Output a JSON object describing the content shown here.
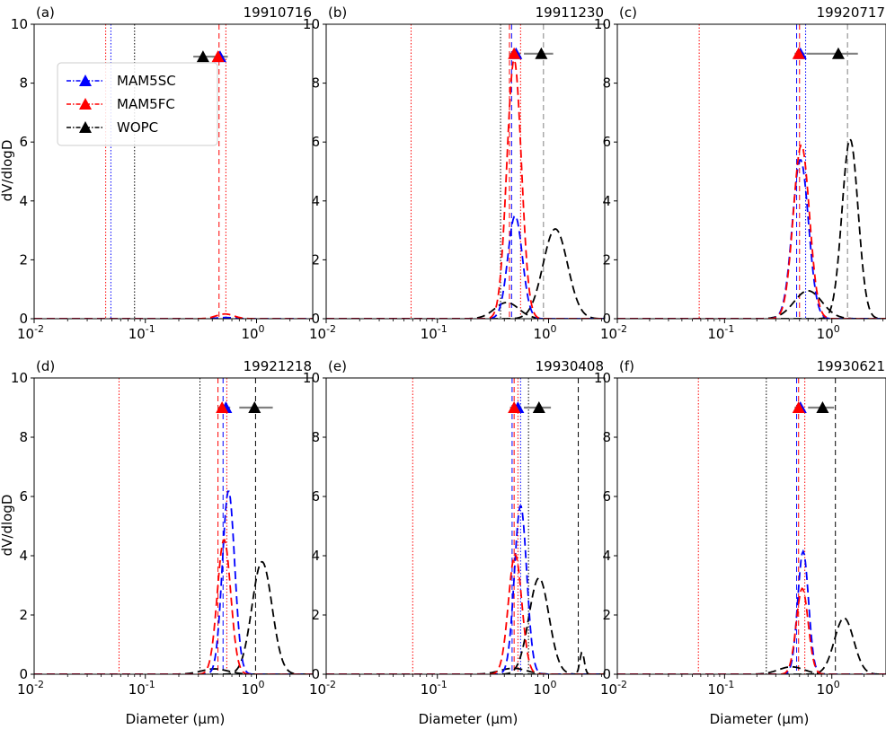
{
  "figure": {
    "ylabel": "dV/dlogD",
    "xlabel": "Diameter (μm)",
    "colors": {
      "MAM5SC": "#0000ff",
      "MAM5FC": "#ff0000",
      "WOPC": "#000000",
      "error_bar": "#808080"
    },
    "legend": [
      {
        "name": "MAM5SC",
        "color": "#0000ff"
      },
      {
        "name": "MAM5FC",
        "color": "#ff0000"
      },
      {
        "name": "WOPC",
        "color": "#000000"
      }
    ]
  },
  "chart_data": [
    {
      "type": "line",
      "panel": "(a)",
      "date": "19910716",
      "xscale": "log",
      "xlim": [
        0.01,
        3.2
      ],
      "ylim": [
        0,
        10
      ],
      "yticks": [
        0,
        2,
        4,
        6,
        8,
        10
      ],
      "xticks": [
        "10^-2",
        "10^-1",
        "10^0"
      ],
      "legend_placement": "upper-left",
      "series": [
        {
          "name": "MAM5SC",
          "peak_d": 0.53,
          "sigma": 0.08,
          "amplitude": 0.04
        },
        {
          "name": "MAM5FC",
          "peak_d": 0.52,
          "sigma": 0.08,
          "amplitude": 0.16
        }
      ],
      "vlines": [
        {
          "x": 0.044,
          "color": "#ff0000",
          "style": "dotted"
        },
        {
          "x": 0.049,
          "color": "#0000ff",
          "style": "dotted"
        },
        {
          "x": 0.08,
          "color": "#000000",
          "style": "dotted"
        },
        {
          "x": 0.46,
          "color": "#ff0000",
          "style": "dashed"
        },
        {
          "x": 0.53,
          "color": "#ff0000",
          "style": "dotted"
        }
      ],
      "markers": [
        {
          "series": "WOPC",
          "x": 0.33,
          "y": 8.9,
          "err": [
            0.27,
            0.45
          ]
        },
        {
          "series": "MAM5SC",
          "x": 0.47,
          "y": 8.9,
          "err": [
            0.4,
            0.55
          ]
        },
        {
          "series": "MAM5FC",
          "x": 0.45,
          "y": 8.9,
          "err": [
            0.4,
            0.55
          ]
        }
      ]
    },
    {
      "type": "line",
      "panel": "(b)",
      "date": "19911230",
      "xscale": "log",
      "xlim": [
        0.01,
        3.2
      ],
      "ylim": [
        0,
        10
      ],
      "yticks": [
        0,
        2,
        4,
        6,
        8,
        10
      ],
      "xticks": [
        "10^-2",
        "10^-1",
        "10^0"
      ],
      "series": [
        {
          "name": "WOPC",
          "peak_d": 0.42,
          "sigma": 0.11,
          "amplitude": 0.55
        },
        {
          "name": "WOPC",
          "peak_d": 1.15,
          "sigma": 0.11,
          "amplitude": 3.05
        },
        {
          "name": "MAM5SC",
          "peak_d": 0.5,
          "sigma": 0.065,
          "amplitude": 3.5
        },
        {
          "name": "MAM5FC",
          "peak_d": 0.49,
          "sigma": 0.065,
          "amplitude": 8.8
        }
      ],
      "vlines": [
        {
          "x": 0.058,
          "color": "#ff0000",
          "style": "dotted"
        },
        {
          "x": 0.37,
          "color": "#000000",
          "style": "dotted"
        },
        {
          "x": 0.445,
          "color": "#ff0000",
          "style": "dashed"
        },
        {
          "x": 0.465,
          "color": "#0000ff",
          "style": "dashed"
        },
        {
          "x": 0.56,
          "color": "#ff0000",
          "style": "dotted"
        },
        {
          "x": 0.9,
          "color": "#808080",
          "style": "dashed"
        }
      ],
      "markers": [
        {
          "series": "MAM5SC",
          "x": 0.51,
          "y": 9.0,
          "err": [
            0.47,
            0.56
          ]
        },
        {
          "series": "MAM5FC",
          "x": 0.49,
          "y": 9.0,
          "err": [
            0.45,
            0.55
          ]
        },
        {
          "series": "WOPC",
          "x": 0.86,
          "y": 9.0,
          "err": [
            0.6,
            1.1
          ]
        }
      ]
    },
    {
      "type": "line",
      "panel": "(c)",
      "date": "19920717",
      "xscale": "log",
      "xlim": [
        0.01,
        3.2
      ],
      "ylim": [
        0,
        10
      ],
      "yticks": [
        0,
        2,
        4,
        6,
        8,
        10
      ],
      "xticks": [
        "10^-2",
        "10^-1",
        "10^0"
      ],
      "series": [
        {
          "name": "WOPC",
          "peak_d": 0.6,
          "sigma": 0.13,
          "amplitude": 0.95
        },
        {
          "name": "WOPC",
          "peak_d": 1.48,
          "sigma": 0.075,
          "amplitude": 6.1
        },
        {
          "name": "MAM5SC",
          "peak_d": 0.51,
          "sigma": 0.075,
          "amplitude": 5.4
        },
        {
          "name": "MAM5FC",
          "peak_d": 0.52,
          "sigma": 0.075,
          "amplitude": 5.9
        }
      ],
      "vlines": [
        {
          "x": 0.058,
          "color": "#ff0000",
          "style": "dotted"
        },
        {
          "x": 0.47,
          "color": "#0000ff",
          "style": "dashed"
        },
        {
          "x": 0.5,
          "color": "#ff0000",
          "style": "dashed"
        },
        {
          "x": 0.57,
          "color": "#0000ff",
          "style": "dotted"
        },
        {
          "x": 1.4,
          "color": "#808080",
          "style": "dashed"
        }
      ],
      "markers": [
        {
          "series": "MAM5SC",
          "x": 0.51,
          "y": 9.0,
          "err": [
            0.47,
            0.56
          ]
        },
        {
          "series": "MAM5FC",
          "x": 0.49,
          "y": 9.0,
          "err": [
            0.45,
            0.55
          ]
        },
        {
          "series": "WOPC",
          "x": 1.15,
          "y": 9.0,
          "err": [
            0.58,
            1.75
          ]
        }
      ]
    },
    {
      "type": "line",
      "panel": "(d)",
      "date": "19921218",
      "xscale": "log",
      "xlim": [
        0.01,
        3.2
      ],
      "ylim": [
        0,
        10
      ],
      "yticks": [
        0,
        2,
        4,
        6,
        8,
        10
      ],
      "xticks": [
        "10^-2",
        "10^-1",
        "10^0"
      ],
      "series": [
        {
          "name": "WOPC",
          "peak_d": 0.42,
          "sigma": 0.12,
          "amplitude": 0.18
        },
        {
          "name": "WOPC",
          "peak_d": 1.12,
          "sigma": 0.09,
          "amplitude": 3.8
        },
        {
          "name": "MAM5SC",
          "peak_d": 0.56,
          "sigma": 0.055,
          "amplitude": 6.2
        },
        {
          "name": "MAM5FC",
          "peak_d": 0.51,
          "sigma": 0.06,
          "amplitude": 4.55
        }
      ],
      "vlines": [
        {
          "x": 0.058,
          "color": "#ff0000",
          "style": "dotted"
        },
        {
          "x": 0.31,
          "color": "#000000",
          "style": "dotted"
        },
        {
          "x": 0.45,
          "color": "#ff0000",
          "style": "dashed"
        },
        {
          "x": 0.5,
          "color": "#0000ff",
          "style": "dashed"
        },
        {
          "x": 0.54,
          "color": "#ff0000",
          "style": "dotted"
        },
        {
          "x": 0.98,
          "color": "#000000",
          "style": "dashed"
        }
      ],
      "markers": [
        {
          "series": "MAM5SC",
          "x": 0.53,
          "y": 9.0,
          "err": [
            0.49,
            0.58
          ]
        },
        {
          "series": "MAM5FC",
          "x": 0.49,
          "y": 9.0,
          "err": [
            0.45,
            0.53
          ]
        },
        {
          "series": "WOPC",
          "x": 0.96,
          "y": 9.0,
          "err": [
            0.7,
            1.4
          ]
        }
      ]
    },
    {
      "type": "line",
      "panel": "(e)",
      "date": "19930408",
      "xscale": "log",
      "xlim": [
        0.01,
        3.2
      ],
      "ylim": [
        0,
        10
      ],
      "yticks": [
        0,
        2,
        4,
        6,
        8,
        10
      ],
      "xticks": [
        "10^-2",
        "10^-1",
        "10^0"
      ],
      "series": [
        {
          "name": "WOPC",
          "peak_d": 0.48,
          "sigma": 0.12,
          "amplitude": 0.2
        },
        {
          "name": "WOPC",
          "peak_d": 0.82,
          "sigma": 0.09,
          "amplitude": 3.25
        },
        {
          "name": "WOPC",
          "peak_d": 2.0,
          "sigma": 0.02,
          "amplitude": 0.75
        },
        {
          "name": "MAM5SC",
          "peak_d": 0.56,
          "sigma": 0.055,
          "amplitude": 5.7
        },
        {
          "name": "MAM5FC",
          "peak_d": 0.5,
          "sigma": 0.06,
          "amplitude": 4.05
        }
      ],
      "vlines": [
        {
          "x": 0.06,
          "color": "#ff0000",
          "style": "dotted"
        },
        {
          "x": 0.47,
          "color": "#0000ff",
          "style": "dashed"
        },
        {
          "x": 0.49,
          "color": "#ff0000",
          "style": "dashed"
        },
        {
          "x": 0.53,
          "color": "#ff0000",
          "style": "dotted"
        },
        {
          "x": 0.56,
          "color": "#0000ff",
          "style": "dotted"
        },
        {
          "x": 0.66,
          "color": "#000000",
          "style": "dotted"
        },
        {
          "x": 1.85,
          "color": "#000000",
          "style": "dashed"
        }
      ],
      "markers": [
        {
          "series": "MAM5SC",
          "x": 0.53,
          "y": 9.0,
          "err": [
            0.49,
            0.57
          ]
        },
        {
          "series": "MAM5FC",
          "x": 0.49,
          "y": 9.0,
          "err": [
            0.45,
            0.53
          ]
        },
        {
          "series": "WOPC",
          "x": 0.82,
          "y": 9.0,
          "err": [
            0.6,
            1.05
          ]
        }
      ]
    },
    {
      "type": "line",
      "panel": "(f)",
      "date": "19930621",
      "xscale": "log",
      "xlim": [
        0.01,
        3.2
      ],
      "ylim": [
        0,
        10
      ],
      "yticks": [
        0,
        2,
        4,
        6,
        8,
        10
      ],
      "xticks": [
        "10^-2",
        "10^-1",
        "10^0"
      ],
      "series": [
        {
          "name": "WOPC",
          "peak_d": 0.42,
          "sigma": 0.12,
          "amplitude": 0.25
        },
        {
          "name": "WOPC",
          "peak_d": 1.3,
          "sigma": 0.09,
          "amplitude": 1.9
        },
        {
          "name": "MAM5SC",
          "peak_d": 0.54,
          "sigma": 0.05,
          "amplitude": 4.15
        },
        {
          "name": "MAM5FC",
          "peak_d": 0.53,
          "sigma": 0.055,
          "amplitude": 2.9
        }
      ],
      "vlines": [
        {
          "x": 0.057,
          "color": "#ff0000",
          "style": "dotted"
        },
        {
          "x": 0.245,
          "color": "#000000",
          "style": "dotted"
        },
        {
          "x": 0.47,
          "color": "#0000ff",
          "style": "dashed"
        },
        {
          "x": 0.49,
          "color": "#ff0000",
          "style": "dashed"
        },
        {
          "x": 0.56,
          "color": "#ff0000",
          "style": "dotted"
        },
        {
          "x": 1.08,
          "color": "#000000",
          "style": "dashed"
        }
      ],
      "markers": [
        {
          "series": "MAM5SC",
          "x": 0.51,
          "y": 9.0,
          "err": [
            0.47,
            0.55
          ]
        },
        {
          "series": "MAM5FC",
          "x": 0.49,
          "y": 9.0,
          "err": [
            0.45,
            0.53
          ]
        },
        {
          "series": "WOPC",
          "x": 0.82,
          "y": 9.0,
          "err": [
            0.6,
            1.05
          ]
        }
      ]
    }
  ]
}
